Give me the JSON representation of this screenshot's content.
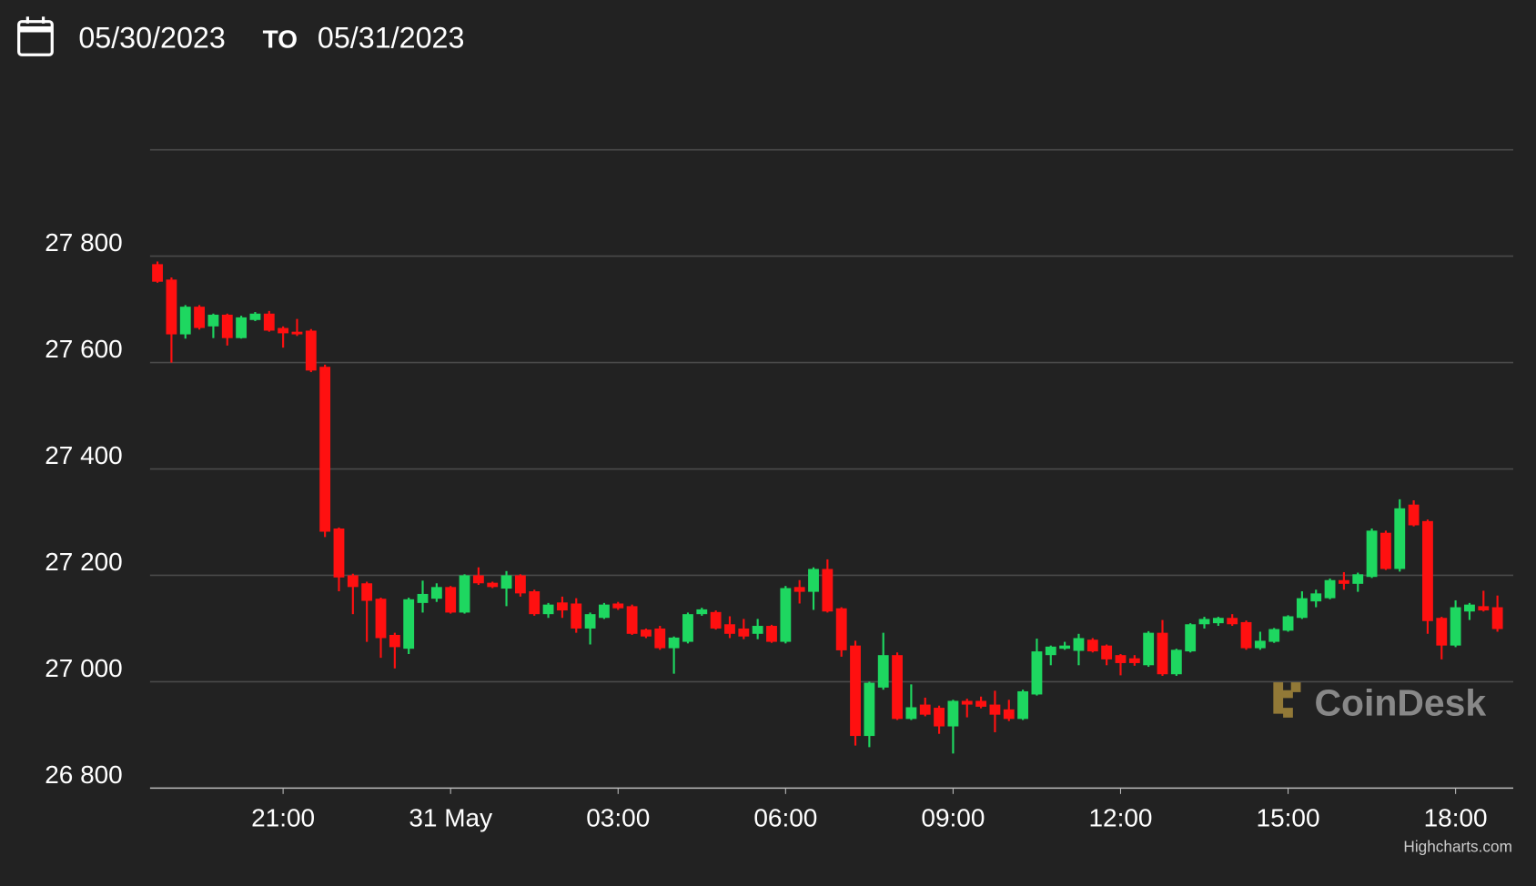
{
  "header": {
    "from": "05/30/2023",
    "to_word": "TO",
    "to": "05/31/2023"
  },
  "chart_data": {
    "type": "candlestick",
    "x": [
      "2023-05-30 18:45",
      "2023-05-30 19:00",
      "2023-05-30 19:15",
      "2023-05-30 19:30",
      "2023-05-30 19:45",
      "2023-05-30 20:00",
      "2023-05-30 20:15",
      "2023-05-30 20:30",
      "2023-05-30 20:45",
      "2023-05-30 21:00",
      "2023-05-30 21:15",
      "2023-05-30 21:30",
      "2023-05-30 21:45",
      "2023-05-30 22:00",
      "2023-05-30 22:15",
      "2023-05-30 22:30",
      "2023-05-30 22:45",
      "2023-05-30 23:00",
      "2023-05-30 23:15",
      "2023-05-30 23:30",
      "2023-05-30 23:45",
      "2023-05-31 00:00",
      "2023-05-31 00:15",
      "2023-05-31 00:30",
      "2023-05-31 00:45",
      "2023-05-31 01:00",
      "2023-05-31 01:15",
      "2023-05-31 01:30",
      "2023-05-31 01:45",
      "2023-05-31 02:00",
      "2023-05-31 02:15",
      "2023-05-31 02:30",
      "2023-05-31 02:45",
      "2023-05-31 03:00",
      "2023-05-31 03:15",
      "2023-05-31 03:30",
      "2023-05-31 03:45",
      "2023-05-31 04:00",
      "2023-05-31 04:15",
      "2023-05-31 04:30",
      "2023-05-31 04:45",
      "2023-05-31 05:00",
      "2023-05-31 05:15",
      "2023-05-31 05:30",
      "2023-05-31 05:45",
      "2023-05-31 06:00",
      "2023-05-31 06:15",
      "2023-05-31 06:30",
      "2023-05-31 06:45",
      "2023-05-31 07:00",
      "2023-05-31 07:15",
      "2023-05-31 07:30",
      "2023-05-31 07:45",
      "2023-05-31 08:00",
      "2023-05-31 08:15",
      "2023-05-31 08:30",
      "2023-05-31 08:45",
      "2023-05-31 09:00",
      "2023-05-31 09:15",
      "2023-05-31 09:30",
      "2023-05-31 09:45",
      "2023-05-31 10:00",
      "2023-05-31 10:15",
      "2023-05-31 10:30",
      "2023-05-31 10:45",
      "2023-05-31 11:00",
      "2023-05-31 11:15",
      "2023-05-31 11:30",
      "2023-05-31 11:45",
      "2023-05-31 12:00",
      "2023-05-31 12:15",
      "2023-05-31 12:30",
      "2023-05-31 12:45",
      "2023-05-31 13:00",
      "2023-05-31 13:15",
      "2023-05-31 13:30",
      "2023-05-31 13:45",
      "2023-05-31 14:00",
      "2023-05-31 14:15",
      "2023-05-31 14:30",
      "2023-05-31 14:45",
      "2023-05-31 15:00",
      "2023-05-31 15:15",
      "2023-05-31 15:30",
      "2023-05-31 15:45",
      "2023-05-31 16:00",
      "2023-05-31 16:15",
      "2023-05-31 16:30",
      "2023-05-31 16:45",
      "2023-05-31 17:00",
      "2023-05-31 17:15",
      "2023-05-31 17:30",
      "2023-05-31 17:45",
      "2023-05-31 18:00",
      "2023-05-31 18:15",
      "2023-05-31 18:30",
      "2023-05-31 18:45"
    ],
    "open": [
      27785,
      27756,
      27653,
      27705,
      27668,
      27690,
      27646,
      27680,
      27692,
      27665,
      27658,
      27660,
      27592,
      27288,
      27200,
      27185,
      27156,
      27088,
      27062,
      27148,
      27156,
      27178,
      27130,
      27200,
      27186,
      27175,
      27200,
      27170,
      27127,
      27149,
      27147,
      27100,
      27120,
      27147,
      27142,
      27098,
      27100,
      27063,
      27075,
      27127,
      27131,
      27108,
      27100,
      27090,
      27105,
      27075,
      27178,
      27169,
      27212,
      27138,
      27068,
      26898,
      26989,
      27050,
      26930,
      26957,
      26951,
      26916,
      26964,
      26964,
      26957,
      26948,
      26930,
      26976,
      27050,
      27062,
      27058,
      27079,
      27068,
      27050,
      27044,
      27031,
      27092,
      27014,
      27057,
      27108,
      27110,
      27120,
      27112,
      27063,
      27075,
      27096,
      27120,
      27151,
      27157,
      27191,
      27184,
      27197,
      27280,
      27212,
      27333,
      27302,
      27120,
      27068,
      27132,
      27142,
      27140
    ],
    "high": [
      27790,
      27760,
      27708,
      27708,
      27692,
      27692,
      27688,
      27695,
      27697,
      27668,
      27682,
      27663,
      27596,
      27290,
      27203,
      27188,
      27158,
      27092,
      27158,
      27190,
      27185,
      27180,
      27202,
      27215,
      27188,
      27208,
      27202,
      27173,
      27148,
      27160,
      27157,
      27130,
      27148,
      27150,
      27145,
      27100,
      27105,
      27085,
      27130,
      27139,
      27134,
      27123,
      27118,
      27118,
      27107,
      27180,
      27191,
      27215,
      27230,
      27140,
      27077,
      27000,
      27092,
      27055,
      26995,
      26970,
      26955,
      26966,
      26968,
      26972,
      26983,
      26966,
      26985,
      27081,
      27068,
      27075,
      27090,
      27082,
      27070,
      27052,
      27050,
      27095,
      27116,
      27062,
      27110,
      27122,
      27122,
      27127,
      27115,
      27094,
      27101,
      27125,
      27170,
      27173,
      27194,
      27206,
      27205,
      27288,
      27284,
      27343,
      27341,
      27305,
      27122,
      27153,
      27148,
      27171,
      27162
    ],
    "low": [
      27750,
      27600,
      27645,
      27662,
      27646,
      27632,
      27645,
      27678,
      27658,
      27628,
      27650,
      27582,
      27272,
      27170,
      27127,
      27075,
      27045,
      27025,
      27052,
      27130,
      27150,
      27128,
      27128,
      27182,
      27176,
      27142,
      27160,
      27124,
      27120,
      27120,
      27092,
      27070,
      27118,
      27135,
      27088,
      27082,
      27060,
      27015,
      27072,
      27124,
      27098,
      27082,
      27080,
      27080,
      27073,
      27072,
      27147,
      27135,
      27130,
      27047,
      26880,
      26877,
      26985,
      26928,
      26928,
      26935,
      26902,
      26865,
      26933,
      26950,
      26905,
      26926,
      26928,
      26974,
      27031,
      27060,
      27031,
      27055,
      27031,
      27012,
      27030,
      27028,
      27011,
      27011,
      27055,
      27100,
      27105,
      27105,
      27060,
      27060,
      27073,
      27094,
      27118,
      27140,
      27155,
      27173,
      27169,
      27195,
      27210,
      27207,
      27292,
      27090,
      27042,
      27065,
      27116,
      27132,
      27094
    ],
    "close": [
      27752,
      27653,
      27705,
      27665,
      27690,
      27646,
      27685,
      27692,
      27660,
      27655,
      27653,
      27585,
      27282,
      27196,
      27178,
      27152,
      27082,
      27065,
      27155,
      27165,
      27178,
      27130,
      27200,
      27185,
      27178,
      27200,
      27166,
      27127,
      27145,
      27134,
      27100,
      27127,
      27145,
      27138,
      27090,
      27085,
      27063,
      27083,
      27127,
      27136,
      27100,
      27090,
      27085,
      27105,
      27075,
      27176,
      27169,
      27212,
      27132,
      27059,
      26898,
      26998,
      27050,
      26930,
      26952,
      26938,
      26916,
      26964,
      26957,
      26953,
      26938,
      26930,
      26982,
      27057,
      27066,
      27068,
      27082,
      27057,
      27042,
      27035,
      27035,
      27092,
      27014,
      27060,
      27108,
      27118,
      27120,
      27108,
      27063,
      27077,
      27099,
      27123,
      27157,
      27166,
      27191,
      27184,
      27202,
      27284,
      27212,
      27326,
      27294,
      27114,
      27068,
      27140,
      27145,
      27134,
      27099
    ],
    "up_color": "#1ed760",
    "down_color": "#ff1010",
    "xlim": [
      "2023-05-30 18:37",
      "2023-05-31 19:02"
    ],
    "xticks": [
      {
        "value": "2023-05-30 21:00",
        "label": "21:00"
      },
      {
        "value": "2023-05-31 00:00",
        "label": "31 May"
      },
      {
        "value": "2023-05-31 03:00",
        "label": "03:00"
      },
      {
        "value": "2023-05-31 06:00",
        "label": "06:00"
      },
      {
        "value": "2023-05-31 09:00",
        "label": "09:00"
      },
      {
        "value": "2023-05-31 12:00",
        "label": "12:00"
      },
      {
        "value": "2023-05-31 15:00",
        "label": "15:00"
      },
      {
        "value": "2023-05-31 18:00",
        "label": "18:00"
      }
    ],
    "ylim": [
      26800,
      28000
    ],
    "yticks": [
      {
        "value": 26800,
        "label": "26 800"
      },
      {
        "value": 27000,
        "label": "27 000"
      },
      {
        "value": 27200,
        "label": "27 200"
      },
      {
        "value": 27400,
        "label": "27 400"
      },
      {
        "value": 27600,
        "label": "27 600"
      },
      {
        "value": 27800,
        "label": "27 800"
      }
    ],
    "grid": true,
    "watermark": "CoinDesk",
    "credits": "Highcharts.com"
  }
}
